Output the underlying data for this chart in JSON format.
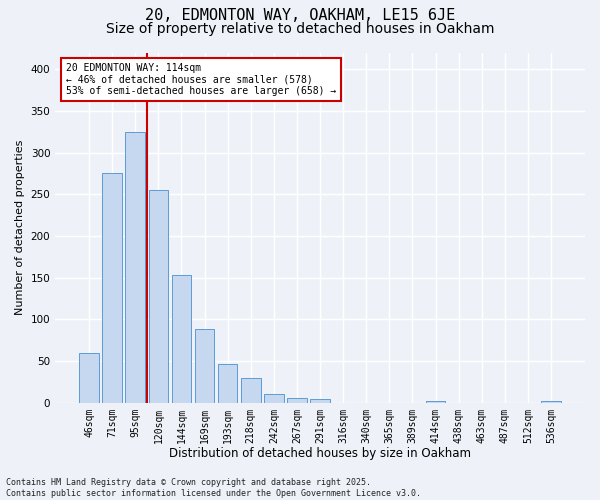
{
  "title1": "20, EDMONTON WAY, OAKHAM, LE15 6JE",
  "title2": "Size of property relative to detached houses in Oakham",
  "xlabel": "Distribution of detached houses by size in Oakham",
  "ylabel": "Number of detached properties",
  "categories": [
    "46sqm",
    "71sqm",
    "95sqm",
    "120sqm",
    "144sqm",
    "169sqm",
    "193sqm",
    "218sqm",
    "242sqm",
    "267sqm",
    "291sqm",
    "316sqm",
    "340sqm",
    "365sqm",
    "389sqm",
    "414sqm",
    "438sqm",
    "463sqm",
    "487sqm",
    "512sqm",
    "536sqm"
  ],
  "values": [
    60,
    275,
    325,
    255,
    153,
    88,
    46,
    30,
    10,
    6,
    5,
    0,
    0,
    0,
    0,
    2,
    0,
    0,
    0,
    0,
    2
  ],
  "bar_color": "#c5d8f0",
  "bar_edge_color": "#5b9bd5",
  "vline_color": "#cc0000",
  "vline_pos": 2.5,
  "annotation_text": "20 EDMONTON WAY: 114sqm\n← 46% of detached houses are smaller (578)\n53% of semi-detached houses are larger (658) →",
  "annotation_box_color": "#ffffff",
  "annotation_box_edge": "#cc0000",
  "ylim": [
    0,
    420
  ],
  "yticks": [
    0,
    50,
    100,
    150,
    200,
    250,
    300,
    350,
    400
  ],
  "footer": "Contains HM Land Registry data © Crown copyright and database right 2025.\nContains public sector information licensed under the Open Government Licence v3.0.",
  "bg_color": "#eef2f8",
  "grid_color": "#ffffff",
  "title1_fontsize": 11,
  "title2_fontsize": 10,
  "xlabel_fontsize": 8.5,
  "ylabel_fontsize": 8,
  "tick_fontsize": 7,
  "annotation_fontsize": 7,
  "footer_fontsize": 6
}
